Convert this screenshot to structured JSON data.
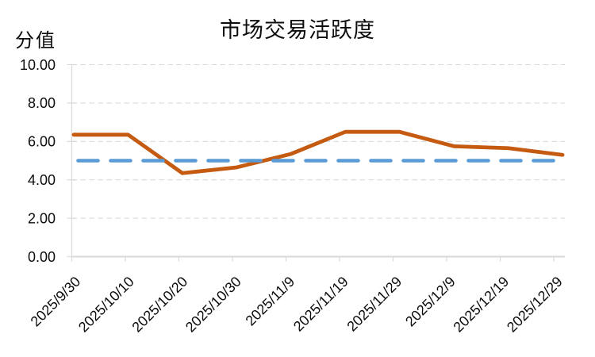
{
  "chart_data": {
    "type": "line",
    "title": "市场交易活跃度",
    "ylabel": "分值",
    "xlabel": "",
    "categories": [
      "2025/9/30",
      "2025/10/10",
      "2025/10/20",
      "2025/10/30",
      "2025/11/9",
      "2025/11/19",
      "2025/11/29",
      "2025/12/9",
      "2025/12/19",
      "2025/12/29"
    ],
    "series": [
      {
        "id": "activity-score-line",
        "style": "solid",
        "color": "#C55A11",
        "values": [
          6.35,
          6.35,
          4.35,
          4.65,
          5.35,
          6.5,
          6.5,
          5.75,
          5.65,
          5.3
        ]
      },
      {
        "id": "reference-baseline",
        "style": "dashed",
        "color": "#5B9BD5",
        "values": [
          5.0,
          5.0,
          5.0,
          5.0,
          5.0,
          5.0,
          5.0,
          5.0,
          5.0,
          5.0
        ]
      }
    ],
    "ylim": [
      0,
      10
    ],
    "y_ticks": [
      0,
      2,
      4,
      6,
      8,
      10
    ],
    "y_tick_labels": [
      "0.00",
      "2.00",
      "4.00",
      "6.00",
      "8.00",
      "10.00"
    ],
    "x_tick_rotation": 45,
    "grid": "horizontal-dashed",
    "legend": "none",
    "colors": {
      "grid": "#D9D9D9",
      "axis": "#D9D9D9",
      "tick_text": "#0d0d0d"
    }
  }
}
